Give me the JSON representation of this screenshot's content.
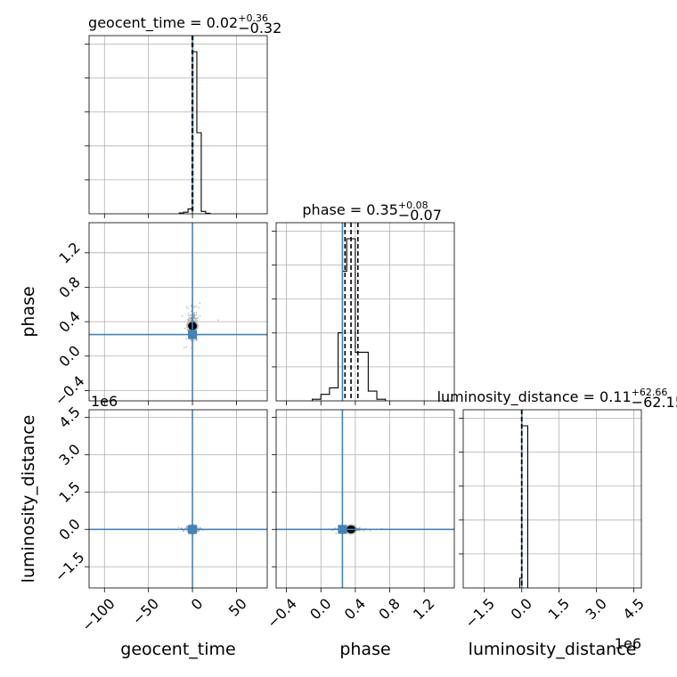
{
  "chart_data": {
    "type": "corner",
    "parameters": [
      "geocent_time",
      "phase",
      "luminosity_distance"
    ],
    "axis_labels": {
      "geocent_time": "geocent_time",
      "phase": "phase",
      "luminosity_distance": "luminosity_distance"
    },
    "ranges": {
      "geocent_time": [
        -117.5,
        85
      ],
      "phase": [
        -0.52,
        1.55
      ],
      "luminosity_distance": [
        -2350000,
        4800000
      ]
    },
    "ticks": {
      "geocent_time": [
        -100,
        -50,
        0,
        50
      ],
      "phase": [
        -0.4,
        0.0,
        0.4,
        0.8,
        1.2
      ],
      "luminosity_distance": [
        -1500000,
        0,
        1500000,
        3000000,
        4500000
      ]
    },
    "tick_labels": {
      "geocent_time": [
        "−100",
        "−50",
        "0",
        "50"
      ],
      "phase": [
        "−0.4",
        "0.0",
        "0.4",
        "0.8",
        "1.2"
      ],
      "luminosity_distance": [
        "−1.5",
        "0.0",
        "1.5",
        "3.0",
        "4.5"
      ]
    },
    "offset_label": "1e6",
    "truths": {
      "geocent_time": 0,
      "phase": 0.25,
      "luminosity_distance": 0
    },
    "truth_color": "#4682b4",
    "quantiles": {
      "geocent_time": [
        -0.3,
        0.02,
        0.38
      ],
      "phase": [
        0.28,
        0.35,
        0.43
      ],
      "luminosity_distance": [
        -62.04,
        0.11,
        62.77
      ]
    },
    "titles": [
      {
        "param": "geocent_time",
        "text": "geocent_time = 0.02",
        "sup": "+0.36",
        "sub": "−0.32"
      },
      {
        "param": "phase",
        "text": "phase = 0.35",
        "sup": "+0.08",
        "sub": "−0.07"
      },
      {
        "param": "luminosity_distance",
        "text": "luminosity_distance = 0.11",
        "sup": "+62.66",
        "sub": "−62.15"
      }
    ],
    "histograms": {
      "geocent_time": {
        "edges": [
          -15,
          -10,
          -5,
          0,
          5,
          10,
          15,
          20
        ],
        "counts": [
          0.005,
          0.01,
          0.03,
          1.0,
          0.5,
          0.015,
          0.003
        ]
      },
      "phase": {
        "edges": [
          -0.1,
          0.0,
          0.1,
          0.2,
          0.25,
          0.3,
          0.35,
          0.4,
          0.45,
          0.55,
          0.65,
          0.75
        ],
        "counts": [
          0.01,
          0.04,
          0.08,
          0.42,
          0.8,
          1.0,
          1.0,
          0.3,
          0.3,
          0.06,
          0.01
        ]
      },
      "luminosity_distance": {
        "edges": [
          -80000,
          0,
          240000
        ],
        "counts": [
          0.06,
          1.0
        ]
      }
    },
    "grid": true
  }
}
